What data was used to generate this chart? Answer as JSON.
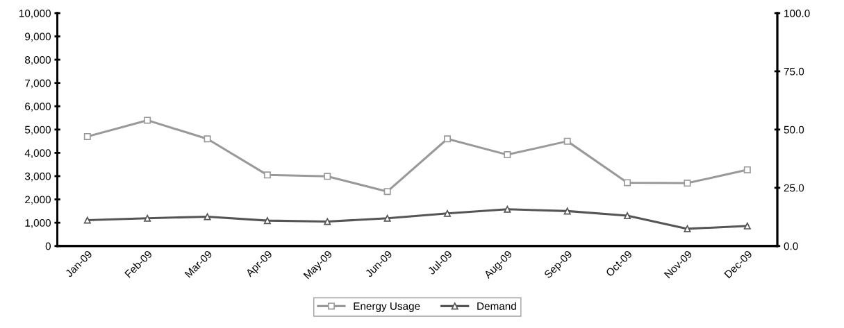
{
  "chart_data": {
    "type": "line",
    "categories": [
      "Jan-09",
      "Feb-09",
      "Mar-09",
      "Apr-09",
      "May-09",
      "Jun-09",
      "Jul-09",
      "Aug-09",
      "Sep-09",
      "Oct-09",
      "Nov-09",
      "Dec-09"
    ],
    "series": [
      {
        "name": "Energy Usage",
        "color": "#999999",
        "marker": "square",
        "values": [
          4700,
          5400,
          4600,
          3050,
          2990,
          2340,
          4600,
          3920,
          4500,
          2720,
          2700,
          3270
        ]
      },
      {
        "name": "Demand",
        "color": "#555555",
        "marker": "triangle",
        "axis": "y2",
        "values": [
          11.1,
          11.9,
          12.6,
          10.9,
          10.5,
          11.9,
          14.0,
          15.8,
          15.0,
          13.0,
          7.4,
          8.6
        ]
      }
    ],
    "ylim": [
      0,
      10000
    ],
    "yticks": [
      {
        "value": 0,
        "label": "0"
      },
      {
        "value": 1000,
        "label": "1,000"
      },
      {
        "value": 2000,
        "label": "2,000"
      },
      {
        "value": 3000,
        "label": "3,000"
      },
      {
        "value": 4000,
        "label": "4,000"
      },
      {
        "value": 5000,
        "label": "5,000"
      },
      {
        "value": 6000,
        "label": "6,000"
      },
      {
        "value": 7000,
        "label": "7,000"
      },
      {
        "value": 8000,
        "label": "8,000"
      },
      {
        "value": 9000,
        "label": "9,000"
      },
      {
        "value": 10000,
        "label": "10,000"
      }
    ],
    "y2lim": [
      0,
      100
    ],
    "y2ticks": [
      {
        "value": 0,
        "label": "0.0"
      },
      {
        "value": 25,
        "label": "25.0"
      },
      {
        "value": 50,
        "label": "50.0"
      },
      {
        "value": 75,
        "label": "75.0"
      },
      {
        "value": 100,
        "label": "100.0"
      }
    ],
    "grid": false,
    "legend": "bottom",
    "line_style": "solid"
  }
}
